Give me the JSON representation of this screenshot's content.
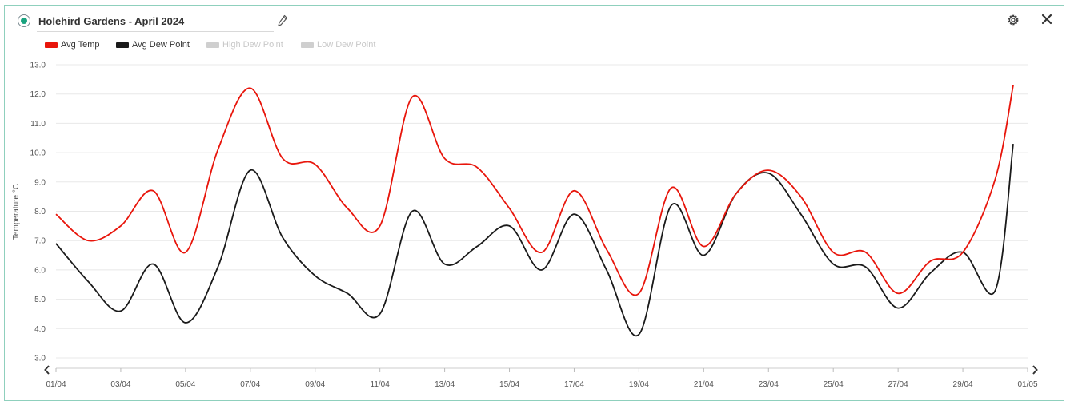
{
  "header": {
    "title": "Holehird Gardens - April 2024",
    "status_icon": "status-indicator-icon",
    "edit_icon": "pencil-icon",
    "settings_icon": "gear-icon",
    "close_icon": "close-icon"
  },
  "legend": [
    {
      "label": "Avg Temp",
      "color": "#e8150b",
      "active": true
    },
    {
      "label": "Avg Dew Point",
      "color": "#1a1a1a",
      "active": true
    },
    {
      "label": "High Dew Point",
      "color": "#cfcfcf",
      "active": false
    },
    {
      "label": "Low Dew Point",
      "color": "#cfcfcf",
      "active": false
    }
  ],
  "nav": {
    "prev_icon": "chevron-left-icon",
    "next_icon": "chevron-right-icon"
  },
  "chart_data": {
    "type": "line",
    "title": "Holehird Gardens - April 2024",
    "xlabel": "",
    "ylabel": "Temperature °C",
    "ylim": [
      3.0,
      13.0
    ],
    "yticks": [
      "3.0",
      "4.0",
      "5.0",
      "6.0",
      "7.0",
      "8.0",
      "9.0",
      "10.0",
      "11.0",
      "12.0",
      "13.0"
    ],
    "xtick_labels": [
      "01/04",
      "03/04",
      "05/04",
      "07/04",
      "09/04",
      "11/04",
      "13/04",
      "15/04",
      "17/04",
      "19/04",
      "21/04",
      "23/04",
      "25/04",
      "27/04",
      "29/04",
      "01/05"
    ],
    "grid": "horizontal",
    "legend_position": "top-left",
    "x": [
      "01/04",
      "02/04",
      "03/04",
      "04/04",
      "05/04",
      "06/04",
      "07/04",
      "08/04",
      "09/04",
      "10/04",
      "11/04",
      "12/04",
      "13/04",
      "14/04",
      "15/04",
      "16/04",
      "17/04",
      "18/04",
      "19/04",
      "20/04",
      "21/04",
      "22/04",
      "23/04",
      "24/04",
      "25/04",
      "26/04",
      "27/04",
      "28/04",
      "29/04",
      "30/04"
    ],
    "series": [
      {
        "name": "Avg Temp",
        "color": "#e8150b",
        "values": [
          7.9,
          7.0,
          7.5,
          8.7,
          6.6,
          10.1,
          12.2,
          9.8,
          9.6,
          8.1,
          7.5,
          11.9,
          9.8,
          9.5,
          8.1,
          6.6,
          8.7,
          6.7,
          5.2,
          8.8,
          6.8,
          8.6,
          9.4,
          8.5,
          6.6,
          6.6,
          5.2,
          6.3,
          6.6,
          9.1
        ],
        "end_value": 12.3
      },
      {
        "name": "Avg Dew Point",
        "color": "#1a1a1a",
        "values": [
          6.9,
          5.6,
          4.6,
          6.2,
          4.2,
          6.1,
          9.4,
          7.1,
          5.8,
          5.2,
          4.5,
          8.0,
          6.2,
          6.8,
          7.5,
          6.0,
          7.9,
          6.0,
          3.8,
          8.2,
          6.5,
          8.6,
          9.3,
          7.9,
          6.2,
          6.1,
          4.7,
          5.9,
          6.6,
          5.3
        ],
        "end_value": 10.3
      }
    ]
  }
}
